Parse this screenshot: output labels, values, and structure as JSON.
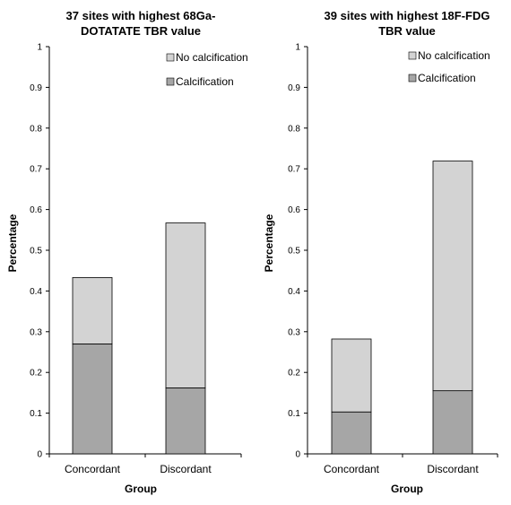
{
  "chart_data": [
    {
      "type": "bar",
      "stacked": true,
      "title": "37 sites with highest 68Ga-DOTATATE TBR value",
      "title_lines": [
        "37 sites with highest 68Ga-",
        "DOTATATE TBR value"
      ],
      "xlabel": "Group",
      "ylabel": "Percentage",
      "categories": [
        "Concordant",
        "Discordant"
      ],
      "ylim": [
        0,
        1
      ],
      "yticks": [
        "0",
        "0.1",
        "0.2",
        "0.3",
        "0.4",
        "0.5",
        "0.6",
        "0.7",
        "0.8",
        "0.9",
        "1"
      ],
      "series": [
        {
          "name": "Calcification",
          "values": [
            0.27,
            0.162
          ],
          "color": "#a6a6a6"
        },
        {
          "name": "No calcification",
          "values": [
            0.163,
            0.405
          ],
          "color": "#d3d3d3"
        }
      ],
      "legend": {
        "position": "top-right",
        "order": [
          "No calcification",
          "Calcification"
        ]
      },
      "grid": false
    },
    {
      "type": "bar",
      "stacked": true,
      "title": "39 sites with highest 18F-FDG TBR value",
      "title_lines": [
        "39 sites with highest 18F-FDG",
        "TBR value"
      ],
      "xlabel": "Group",
      "ylabel": "Percentage",
      "categories": [
        "Concordant",
        "Discordant"
      ],
      "ylim": [
        0,
        1
      ],
      "yticks": [
        "0",
        "0.1",
        "0.2",
        "0.3",
        "0.4",
        "0.5",
        "0.6",
        "0.7",
        "0.8",
        "0.9",
        "1"
      ],
      "series": [
        {
          "name": "Calcification",
          "values": [
            0.103,
            0.155
          ],
          "color": "#a6a6a6"
        },
        {
          "name": "No calcification",
          "values": [
            0.179,
            0.564
          ],
          "color": "#d3d3d3"
        }
      ],
      "legend": {
        "position": "top-right",
        "order": [
          "No calcification",
          "Calcification"
        ]
      },
      "grid": false
    }
  ]
}
